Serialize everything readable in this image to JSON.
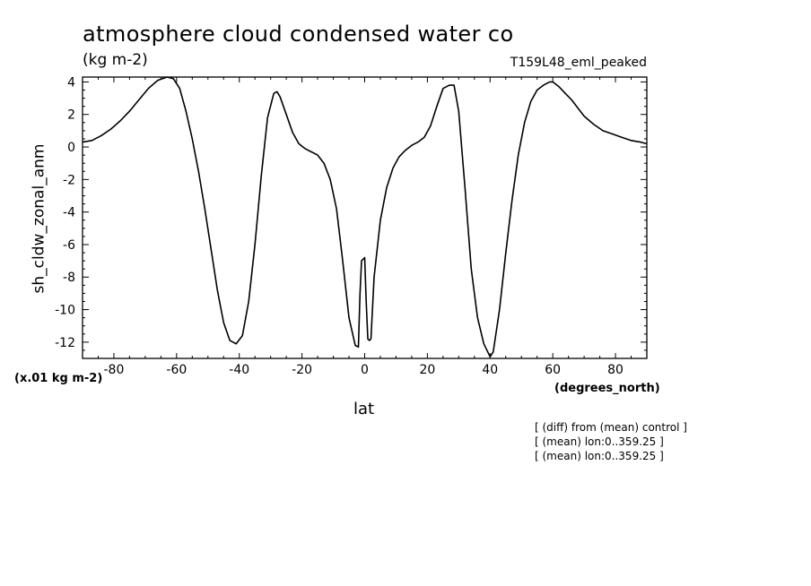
{
  "chart_data": {
    "type": "line",
    "title": "atmosphere cloud condensed water co",
    "units": "(kg m-2)",
    "run_label": "T159L48_eml_peaked",
    "scale_note": "(x.01 kg m-2)",
    "xlabel": "lat",
    "x_units": "(degrees_north)",
    "ylabel": "sh_cldw_zonal_anm",
    "xlim": [
      -90,
      90
    ],
    "ylim": [
      -13,
      4.3
    ],
    "x_ticks": [
      -80,
      -60,
      -40,
      -20,
      0,
      20,
      40,
      60,
      80
    ],
    "y_ticks": [
      4,
      2,
      0,
      -2,
      -4,
      -6,
      -8,
      -10,
      -12
    ],
    "x_tick_labels": [
      "-80",
      "-60",
      "-40",
      "-20",
      "0",
      "20",
      "40",
      "60",
      "80"
    ],
    "y_tick_labels": [
      "4",
      "2",
      "0",
      "-2",
      "-4",
      "-6",
      "-8",
      "-10",
      "-12"
    ],
    "grid": false,
    "series": [
      {
        "x": [
          -90,
          -87,
          -84,
          -81,
          -78,
          -75,
          -72,
          -69,
          -66,
          -63,
          -61,
          -59,
          -57,
          -55,
          -53,
          -51,
          -49,
          -47,
          -45,
          -43,
          -41,
          -39,
          -37,
          -35,
          -33,
          -31,
          -29,
          -28,
          -27,
          -25,
          -23,
          -21,
          -19,
          -17,
          -15,
          -13,
          -11,
          -9,
          -7,
          -5,
          -3,
          -2,
          -1.5,
          -1,
          0,
          0.5,
          1,
          1.5,
          2,
          3,
          5,
          7,
          9,
          11,
          13,
          15,
          17,
          19,
          21,
          23,
          25,
          27,
          28.5,
          30,
          32,
          34,
          36,
          38,
          40,
          41,
          43,
          45,
          47,
          49,
          51,
          53,
          55,
          57,
          59,
          60,
          62,
          64,
          66,
          68,
          70,
          73,
          76,
          79,
          82,
          85,
          88,
          90
        ],
        "y": [
          0.3,
          0.4,
          0.7,
          1.1,
          1.6,
          2.2,
          2.9,
          3.6,
          4.1,
          4.3,
          4.2,
          3.6,
          2.2,
          0.5,
          -1.5,
          -3.8,
          -6.3,
          -8.8,
          -10.8,
          -11.9,
          -12.1,
          -11.6,
          -9.5,
          -6.0,
          -1.8,
          1.8,
          3.3,
          3.4,
          3.1,
          2.0,
          0.9,
          0.2,
          -0.1,
          -0.3,
          -0.5,
          -1.0,
          -2.0,
          -3.8,
          -7.0,
          -10.5,
          -12.2,
          -12.3,
          -9.0,
          -7.0,
          -6.8,
          -9.5,
          -11.8,
          -11.9,
          -11.8,
          -8.0,
          -4.5,
          -2.5,
          -1.3,
          -0.6,
          -0.2,
          0.1,
          0.3,
          0.6,
          1.3,
          2.5,
          3.6,
          3.8,
          3.8,
          2.2,
          -2.5,
          -7.5,
          -10.5,
          -12.1,
          -12.9,
          -12.6,
          -10.0,
          -6.5,
          -3.3,
          -0.5,
          1.5,
          2.8,
          3.5,
          3.8,
          4.0,
          4.0,
          3.7,
          3.3,
          2.9,
          2.4,
          1.9,
          1.4,
          1.0,
          0.8,
          0.6,
          0.4,
          0.3,
          0.2
        ]
      }
    ],
    "notes": [
      "[ (diff) from (mean) control ]",
      "[ (mean) lon:0..359.25 ]",
      "[ (mean) lon:0..359.25 ]"
    ]
  }
}
